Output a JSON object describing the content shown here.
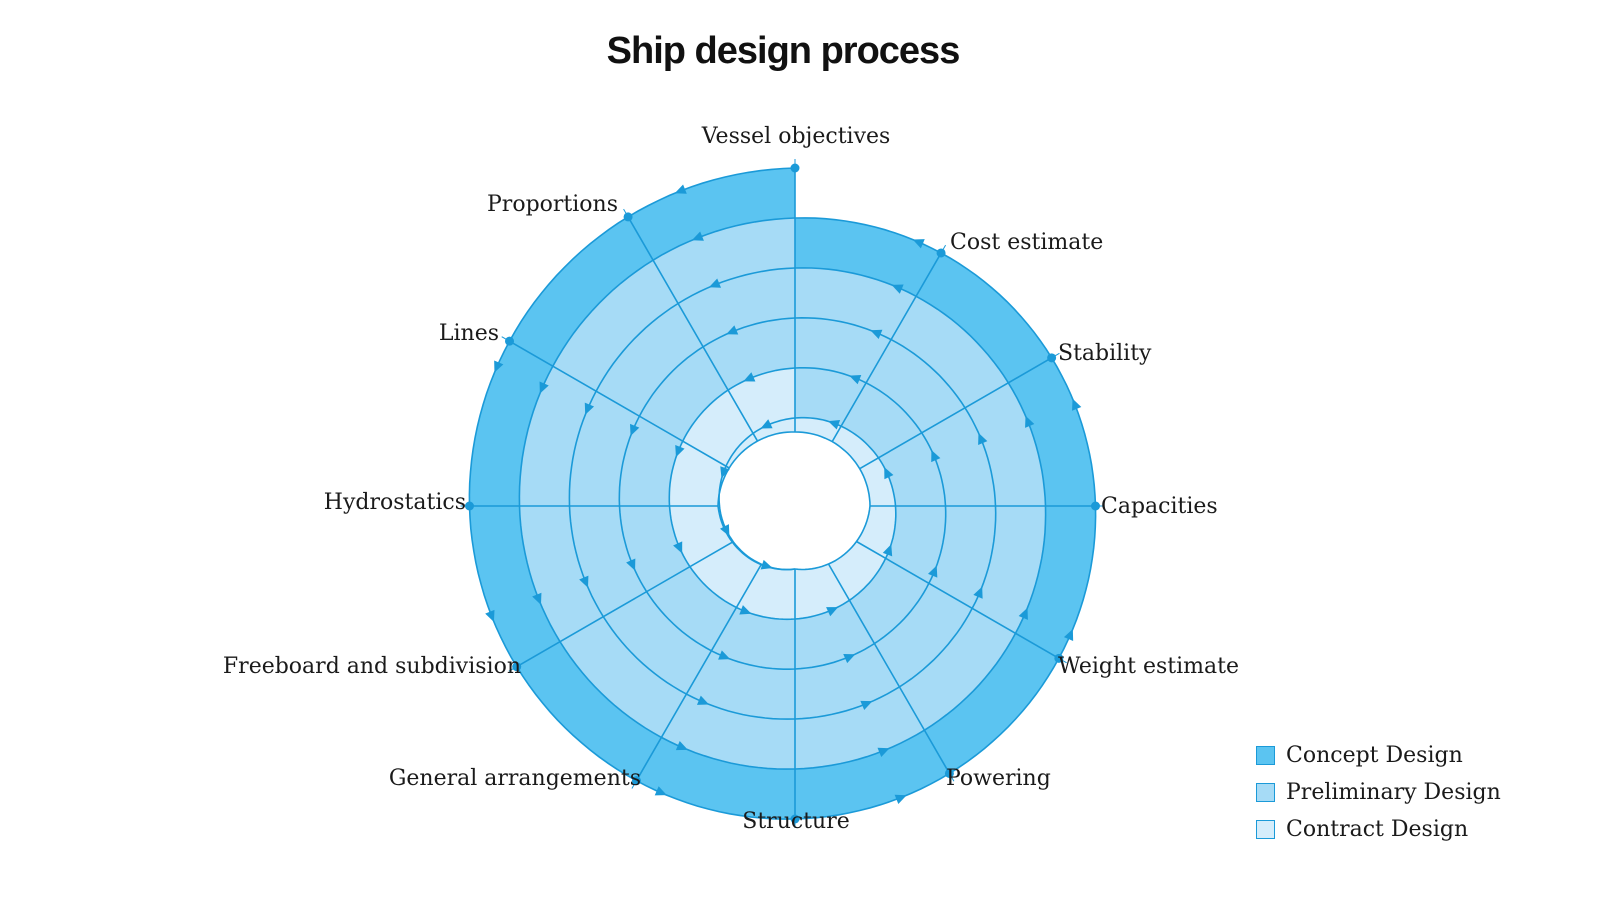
{
  "title": "Ship design process",
  "stages": [
    "Vessel objectives",
    "Cost estimate",
    "Stability",
    "Capacities",
    "Weight estimate",
    "Powering",
    "Structure",
    "General arrangements",
    "Freeboard and subdivision",
    "Hydrostatics",
    "Lines",
    "Proportions"
  ],
  "legend": [
    {
      "label": "Concept Design",
      "color": "#5bc4f1"
    },
    {
      "label": "Preliminary Design",
      "color": "#a6dbf6"
    },
    {
      "label": "Contract Design",
      "color": "#d5edfb"
    }
  ],
  "colors": {
    "line": "#1b9ad8",
    "background": "#ffffff"
  },
  "flow_direction": "counterclockwise spiral inward"
}
